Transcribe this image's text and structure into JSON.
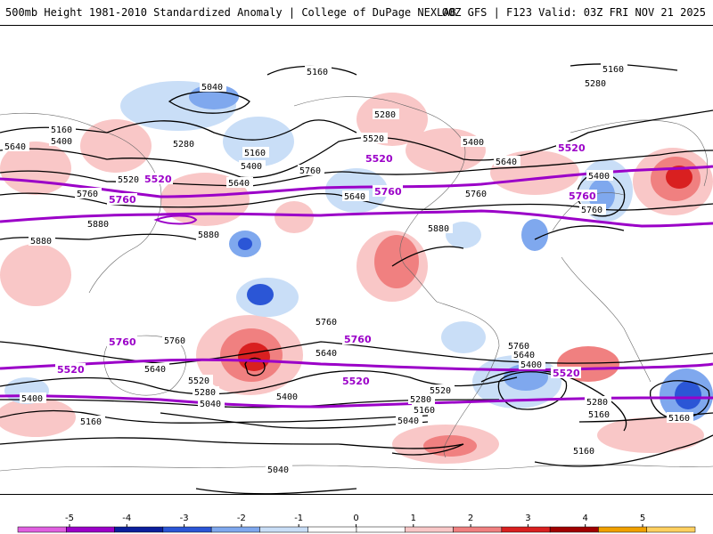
{
  "header": {
    "title_left": "500mb Height 1981-2010 Standardized Anomaly | College of DuPage NEXLAB",
    "title_right": "00Z GFS | F123 Valid: 03Z FRI NOV 21 2025"
  },
  "map": {
    "contour_labels": [
      "5040",
      "5160",
      "5280",
      "5400",
      "5520",
      "5640",
      "5760",
      "5880"
    ],
    "highlight_labels": [
      "5520",
      "5760"
    ],
    "anomaly_colors": {
      "pos1": "#f9c7c7",
      "pos2": "#f08080",
      "pos3": "#d92020",
      "pos4": "#a00000",
      "neg1": "#c9def7",
      "neg2": "#7fa8ee",
      "neg3": "#2b56d6",
      "neg4": "#0b1f9c"
    },
    "contour_color": "#000000",
    "highlight_color": "#9b00c8"
  },
  "colorbar": {
    "ticks": [
      "-5",
      "-4",
      "-3",
      "-2",
      "-1",
      "0",
      "1",
      "2",
      "3",
      "4",
      "5"
    ],
    "colors": [
      "#e060e0",
      "#9b00c8",
      "#0b1f9c",
      "#2b56d6",
      "#7fa8ee",
      "#c9def7",
      "#ffffff",
      "#ffffff",
      "#f9c7c7",
      "#f08080",
      "#d92020",
      "#a00000",
      "#f0a000",
      "#ffd060"
    ]
  }
}
